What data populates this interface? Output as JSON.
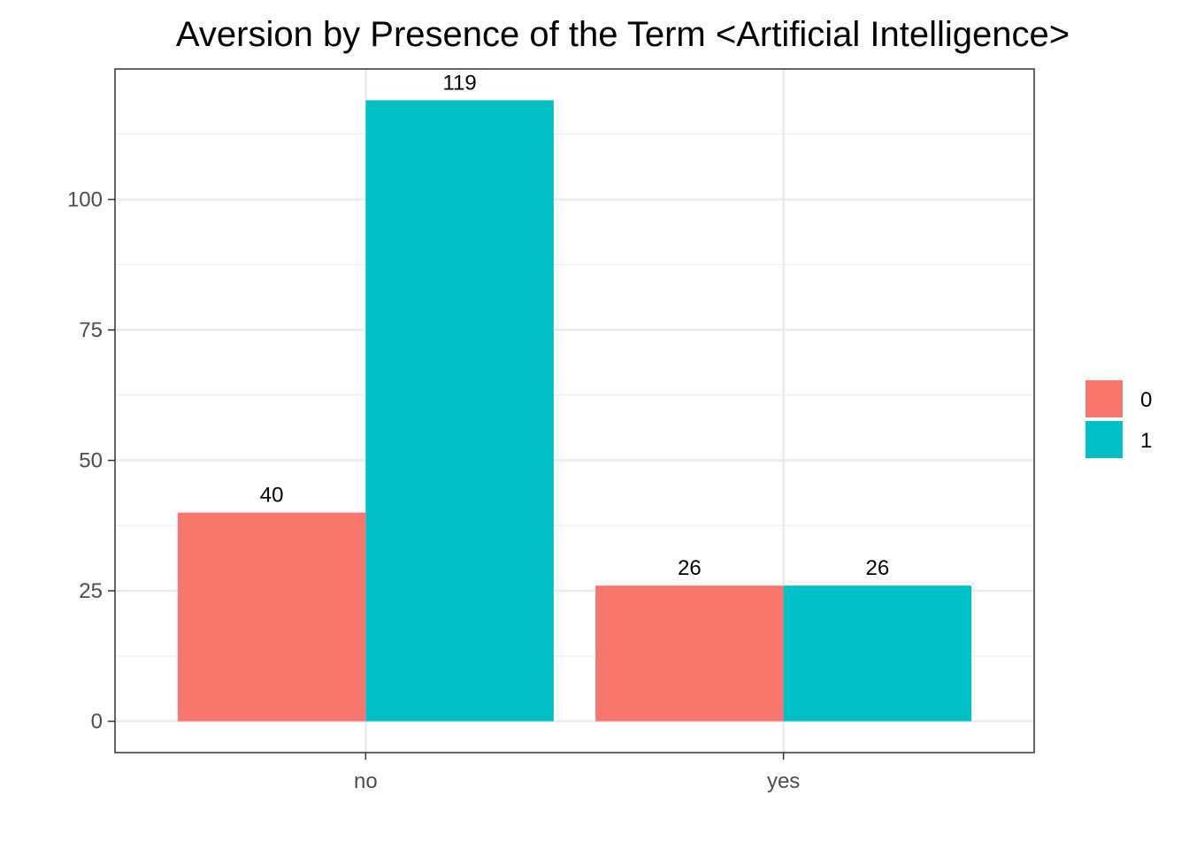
{
  "chart_data": {
    "type": "bar",
    "title": "Aversion by Presence of the Term <Artificial Intelligence>",
    "xlabel": "",
    "ylabel": "",
    "categories": [
      "no",
      "yes"
    ],
    "series": [
      {
        "name": "0",
        "values": [
          40,
          26
        ],
        "color": "#F8766D"
      },
      {
        "name": "1",
        "values": [
          119,
          26
        ],
        "color": "#00BFC4"
      }
    ],
    "ylim": [
      -6,
      125
    ],
    "y_ticks": [
      0,
      25,
      50,
      75,
      100
    ],
    "grid": true,
    "legend": {
      "position": "right"
    },
    "data_labels": true
  }
}
